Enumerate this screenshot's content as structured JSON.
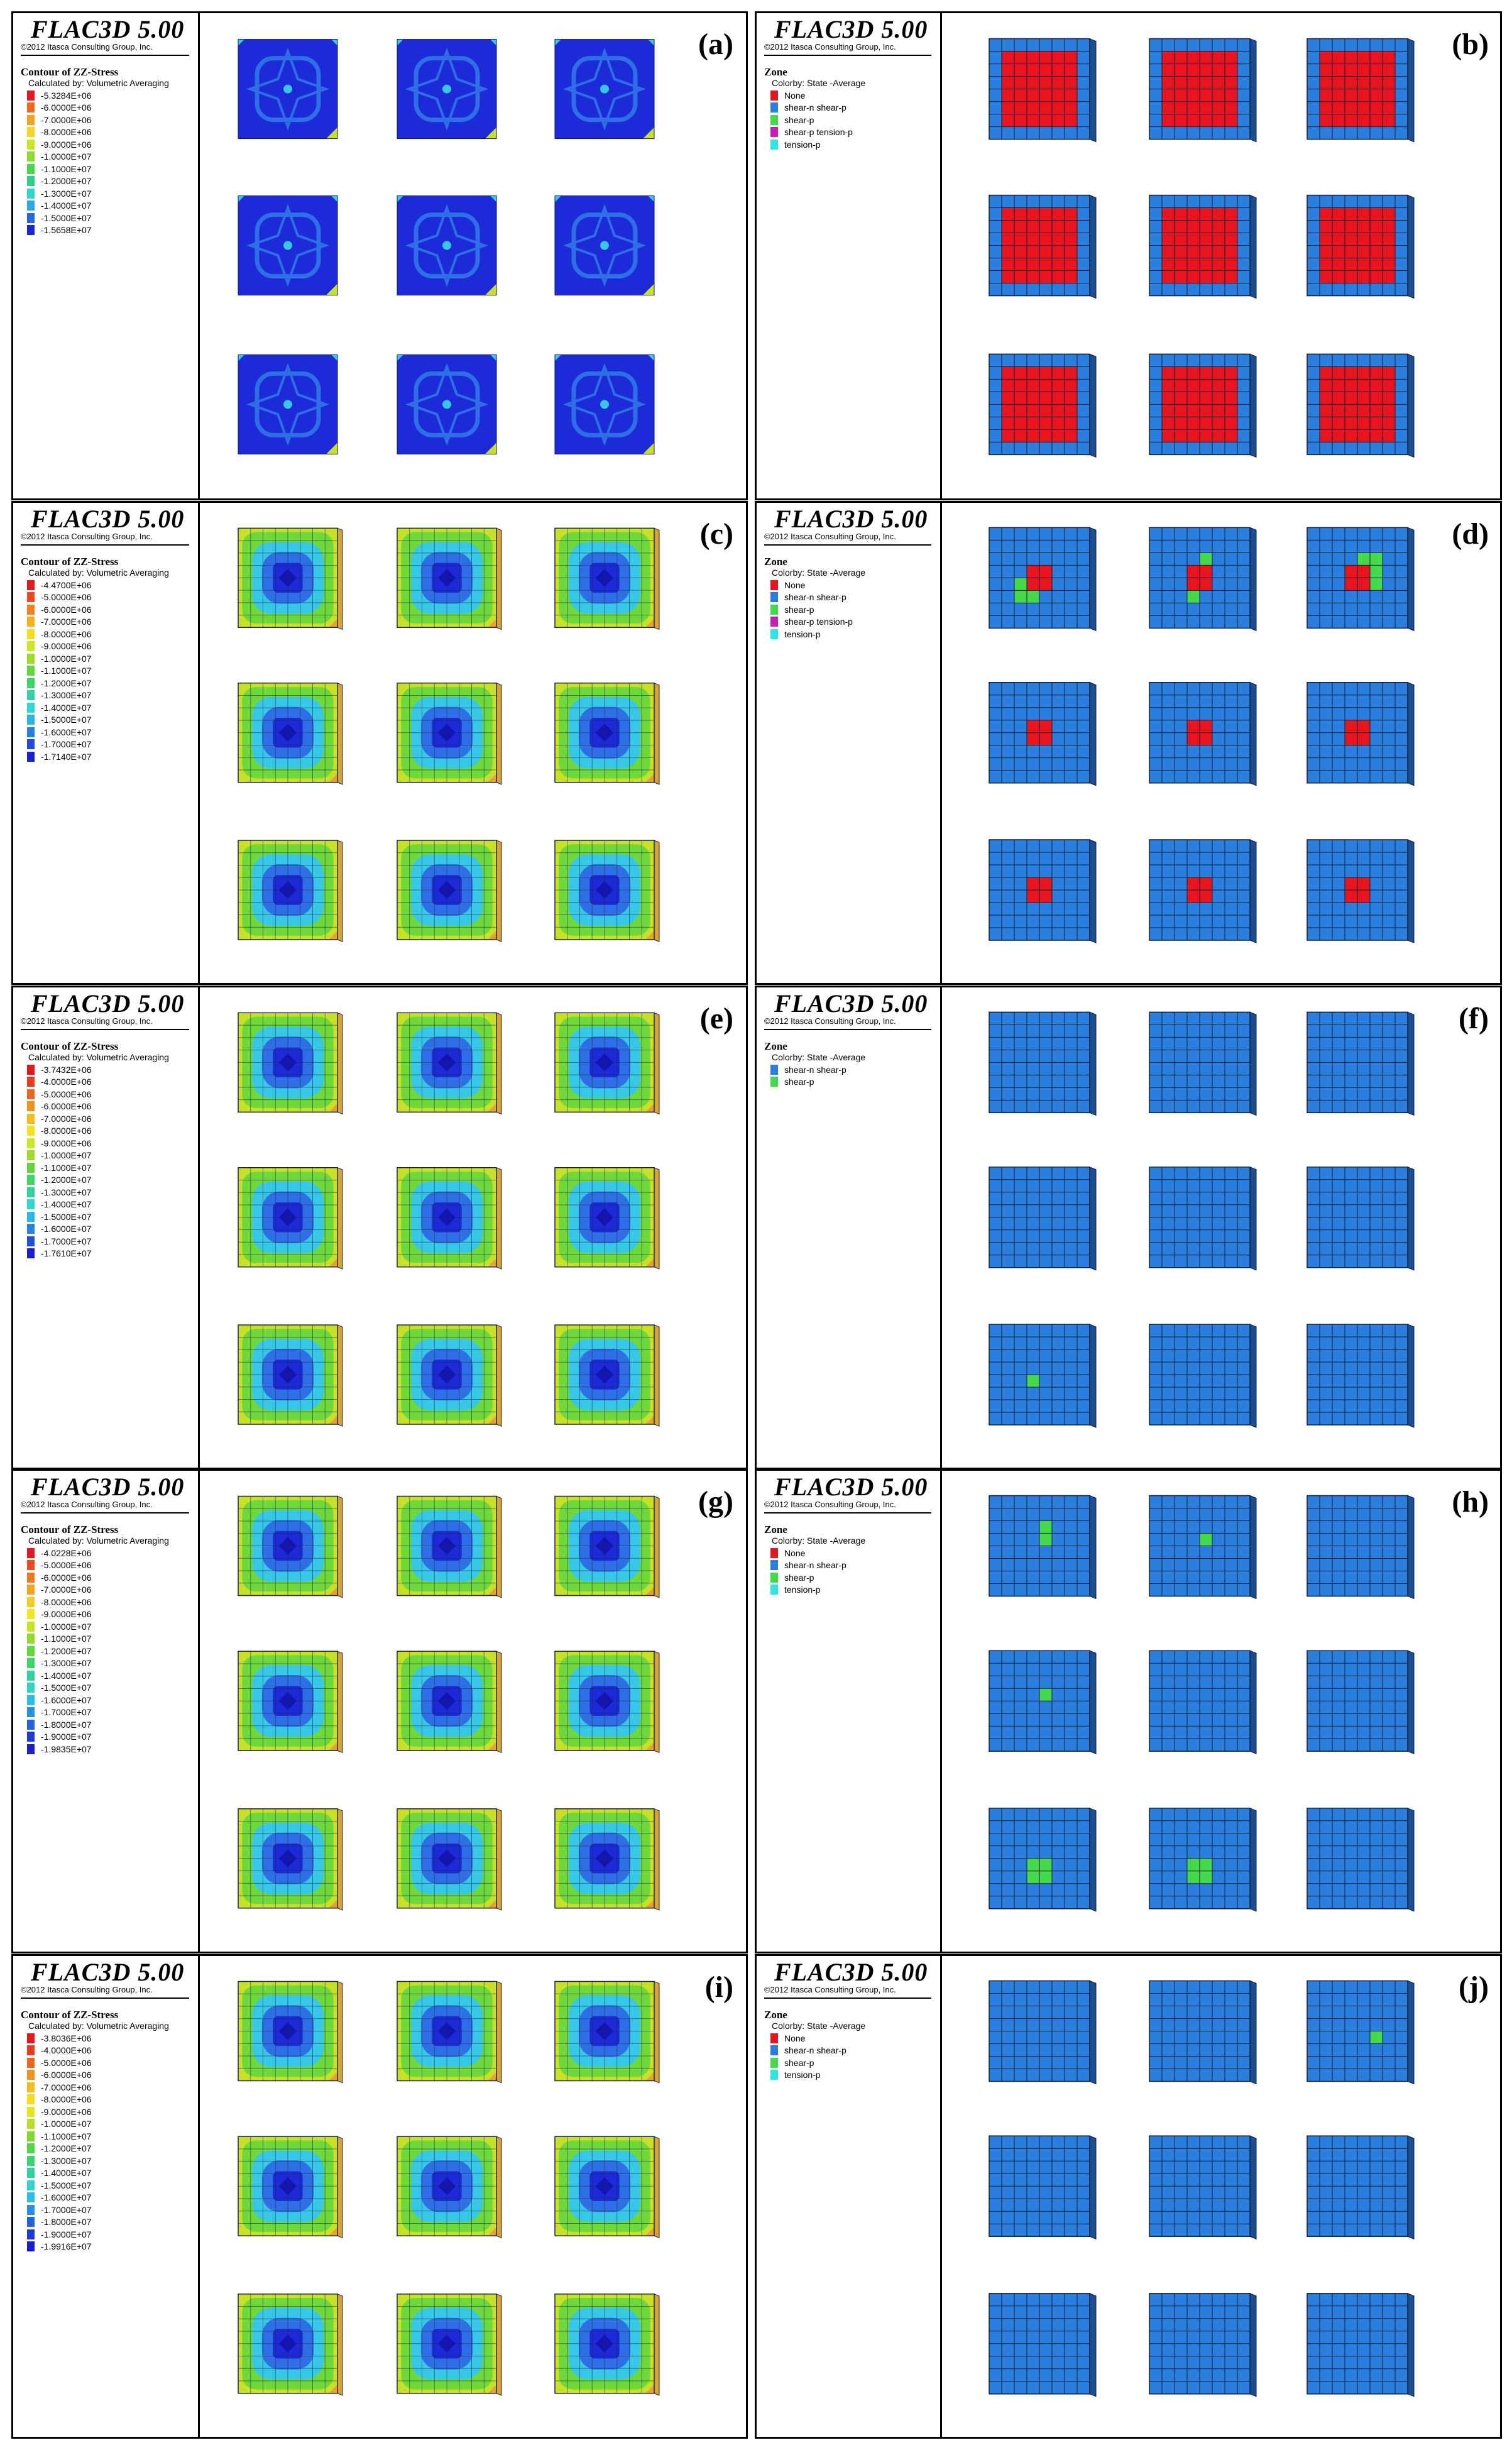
{
  "figure": {
    "panels": [
      {
        "id": "a",
        "label": "(a)",
        "kind": "stress",
        "title": "FLAC3D 5.00",
        "copyright": "©2012 Itasca Consulting Group, Inc.",
        "heading": "Contour of ZZ-Stress",
        "subheading": "Calculated by: Volumetric Averaging",
        "legend": [
          {
            "text": "-5.3284E+06",
            "color": "#e8141e"
          },
          {
            "text": "-6.0000E+06",
            "color": "#f2691e"
          },
          {
            "text": "-7.0000E+06",
            "color": "#f7a11c"
          },
          {
            "text": "-8.0000E+06",
            "color": "#f7d51c"
          },
          {
            "text": "-9.0000E+06",
            "color": "#c8e81e"
          },
          {
            "text": "-1.0000E+07",
            "color": "#8cdc2a"
          },
          {
            "text": "-1.1000E+07",
            "color": "#44d84a"
          },
          {
            "text": "-1.2000E+07",
            "color": "#2ed08c"
          },
          {
            "text": "-1.3000E+07",
            "color": "#2ed8c8"
          },
          {
            "text": "-1.4000E+07",
            "color": "#2aa8ea"
          },
          {
            "text": "-1.5000E+07",
            "color": "#2466e6"
          },
          {
            "text": "-1.5658E+07",
            "color": "#1a24d8"
          }
        ]
      },
      {
        "id": "b",
        "label": "(b)",
        "kind": "state",
        "title": "FLAC3D 5.00",
        "copyright": "©2012 Itasca Consulting Group, Inc.",
        "heading": "Zone",
        "subheading": "Colorby: State  -Average",
        "legend": [
          {
            "text": "None",
            "color": "#e8141e"
          },
          {
            "text": "shear-n shear-p",
            "color": "#2a7ede"
          },
          {
            "text": "shear-p",
            "color": "#44d84a"
          },
          {
            "text": "shear-p tension-p",
            "color": "#c81eb4"
          },
          {
            "text": "tension-p",
            "color": "#2ee6e6"
          }
        ]
      },
      {
        "id": "c",
        "label": "(c)",
        "kind": "stress",
        "title": "FLAC3D 5.00",
        "copyright": "©2012 Itasca Consulting Group, Inc.",
        "heading": "Contour of ZZ-Stress",
        "subheading": "Calculated by: Volumetric Averaging",
        "legend": [
          {
            "text": "-4.4700E+06",
            "color": "#e8141e"
          },
          {
            "text": "-5.0000E+06",
            "color": "#ee4a1e"
          },
          {
            "text": "-6.0000E+06",
            "color": "#f2801e"
          },
          {
            "text": "-7.0000E+06",
            "color": "#f7b01c"
          },
          {
            "text": "-8.0000E+06",
            "color": "#f7dc1c"
          },
          {
            "text": "-9.0000E+06",
            "color": "#cce81e"
          },
          {
            "text": "-1.0000E+07",
            "color": "#9adc26"
          },
          {
            "text": "-1.1000E+07",
            "color": "#5ed83a"
          },
          {
            "text": "-1.2000E+07",
            "color": "#38d66a"
          },
          {
            "text": "-1.3000E+07",
            "color": "#2ed4a4"
          },
          {
            "text": "-1.4000E+07",
            "color": "#2ed8d8"
          },
          {
            "text": "-1.5000E+07",
            "color": "#2ab4ea"
          },
          {
            "text": "-1.6000E+07",
            "color": "#2680e8"
          },
          {
            "text": "-1.7000E+07",
            "color": "#1e4ae0"
          },
          {
            "text": "-1.7140E+07",
            "color": "#1a20d6"
          }
        ]
      },
      {
        "id": "d",
        "label": "(d)",
        "kind": "state",
        "title": "FLAC3D 5.00",
        "copyright": "©2012 Itasca Consulting Group, Inc.",
        "heading": "Zone",
        "subheading": "Colorby: State  -Average",
        "legend": [
          {
            "text": "None",
            "color": "#e8141e"
          },
          {
            "text": "shear-n shear-p",
            "color": "#2a7ede"
          },
          {
            "text": "shear-p",
            "color": "#44d84a"
          },
          {
            "text": "shear-p tension-p",
            "color": "#c81eb4"
          },
          {
            "text": "tension-p",
            "color": "#2ee6e6"
          }
        ]
      },
      {
        "id": "e",
        "label": "(e)",
        "kind": "stress",
        "title": "FLAC3D 5.00",
        "copyright": "©2012 Itasca Consulting Group, Inc.",
        "heading": "Contour of ZZ-Stress",
        "subheading": "Calculated by: Volumetric Averaging",
        "legend": [
          {
            "text": "-3.7432E+06",
            "color": "#e8141e"
          },
          {
            "text": "-4.0000E+06",
            "color": "#ec3a1e"
          },
          {
            "text": "-5.0000E+06",
            "color": "#f0661e"
          },
          {
            "text": "-6.0000E+06",
            "color": "#f4921e"
          },
          {
            "text": "-7.0000E+06",
            "color": "#f7bc1c"
          },
          {
            "text": "-8.0000E+06",
            "color": "#f7e01c"
          },
          {
            "text": "-9.0000E+06",
            "color": "#cce81e"
          },
          {
            "text": "-1.0000E+07",
            "color": "#9adc26"
          },
          {
            "text": "-1.1000E+07",
            "color": "#62d838"
          },
          {
            "text": "-1.2000E+07",
            "color": "#3cd664"
          },
          {
            "text": "-1.3000E+07",
            "color": "#2ed49c"
          },
          {
            "text": "-1.4000E+07",
            "color": "#2ed8d0"
          },
          {
            "text": "-1.5000E+07",
            "color": "#2ab8ea"
          },
          {
            "text": "-1.6000E+07",
            "color": "#2684e8"
          },
          {
            "text": "-1.7000E+07",
            "color": "#1e50e0"
          },
          {
            "text": "-1.7610E+07",
            "color": "#1a20d6"
          }
        ]
      },
      {
        "id": "f",
        "label": "(f)",
        "kind": "state",
        "title": "FLAC3D 5.00",
        "copyright": "©2012 Itasca Consulting Group, Inc.",
        "heading": "Zone",
        "subheading": "Colorby: State  -Average",
        "legend": [
          {
            "text": "shear-n shear-p",
            "color": "#2a7ede"
          },
          {
            "text": "shear-p",
            "color": "#44d84a"
          }
        ]
      },
      {
        "id": "g",
        "label": "(g)",
        "kind": "stress",
        "title": "FLAC3D 5.00",
        "copyright": "©2012 Itasca Consulting Group, Inc.",
        "heading": "Contour of ZZ-Stress",
        "subheading": "Calculated by: Volumetric Averaging",
        "legend": [
          {
            "text": "-4.0228E+06",
            "color": "#e8141e"
          },
          {
            "text": "-5.0000E+06",
            "color": "#ee4a1e"
          },
          {
            "text": "-6.0000E+06",
            "color": "#f2781e"
          },
          {
            "text": "-7.0000E+06",
            "color": "#f6a41e"
          },
          {
            "text": "-8.0000E+06",
            "color": "#f7cc1c"
          },
          {
            "text": "-9.0000E+06",
            "color": "#f2e61c"
          },
          {
            "text": "-1.0000E+07",
            "color": "#c4e820"
          },
          {
            "text": "-1.1000E+07",
            "color": "#92dc28"
          },
          {
            "text": "-1.2000E+07",
            "color": "#5ed83a"
          },
          {
            "text": "-1.3000E+07",
            "color": "#3ad666"
          },
          {
            "text": "-1.4000E+07",
            "color": "#2ed498"
          },
          {
            "text": "-1.5000E+07",
            "color": "#2ed6c6"
          },
          {
            "text": "-1.6000E+07",
            "color": "#2abeea"
          },
          {
            "text": "-1.7000E+07",
            "color": "#2690e8"
          },
          {
            "text": "-1.8000E+07",
            "color": "#2262e4"
          },
          {
            "text": "-1.9000E+07",
            "color": "#1e3ade"
          },
          {
            "text": "-1.9835E+07",
            "color": "#1a1cd4"
          }
        ]
      },
      {
        "id": "h",
        "label": "(h)",
        "kind": "state",
        "title": "FLAC3D 5.00",
        "copyright": "©2012 Itasca Consulting Group, Inc.",
        "heading": "Zone",
        "subheading": "Colorby: State  -Average",
        "legend": [
          {
            "text": "None",
            "color": "#e8141e"
          },
          {
            "text": "shear-n shear-p",
            "color": "#2a7ede"
          },
          {
            "text": "shear-p",
            "color": "#44d84a"
          },
          {
            "text": "tension-p",
            "color": "#2ee6e6"
          }
        ]
      },
      {
        "id": "i",
        "label": "(i)",
        "kind": "stress",
        "title": "FLAC3D 5.00",
        "copyright": "©2012 Itasca Consulting Group, Inc.",
        "heading": "Contour of ZZ-Stress",
        "subheading": "Calculated by: Volumetric Averaging",
        "legend": [
          {
            "text": "-3.8036E+06",
            "color": "#e8141e"
          },
          {
            "text": "-4.0000E+06",
            "color": "#ec3a1e"
          },
          {
            "text": "-5.0000E+06",
            "color": "#f0661e"
          },
          {
            "text": "-6.0000E+06",
            "color": "#f4921e"
          },
          {
            "text": "-7.0000E+06",
            "color": "#f7bc1c"
          },
          {
            "text": "-8.0000E+06",
            "color": "#f7dc1c"
          },
          {
            "text": "-9.0000E+06",
            "color": "#e2e81e"
          },
          {
            "text": "-1.0000E+07",
            "color": "#b2e222"
          },
          {
            "text": "-1.1000E+07",
            "color": "#80da2c"
          },
          {
            "text": "-1.2000E+07",
            "color": "#52d842"
          },
          {
            "text": "-1.3000E+07",
            "color": "#36d670"
          },
          {
            "text": "-1.4000E+07",
            "color": "#2ed4a0"
          },
          {
            "text": "-1.5000E+07",
            "color": "#2ed6cc"
          },
          {
            "text": "-1.6000E+07",
            "color": "#2abeea"
          },
          {
            "text": "-1.7000E+07",
            "color": "#2690e8"
          },
          {
            "text": "-1.8000E+07",
            "color": "#2262e4"
          },
          {
            "text": "-1.9000E+07",
            "color": "#1e3ade"
          },
          {
            "text": "-1.9916E+07",
            "color": "#1a1cd4"
          }
        ]
      },
      {
        "id": "j",
        "label": "(j)",
        "kind": "state",
        "title": "FLAC3D 5.00",
        "copyright": "©2012 Itasca Consulting Group, Inc.",
        "heading": "Zone",
        "subheading": "Colorby: State  -Average",
        "legend": [
          {
            "text": "None",
            "color": "#e8141e"
          },
          {
            "text": "shear-n shear-p",
            "color": "#2a7ede"
          },
          {
            "text": "shear-p",
            "color": "#44d84a"
          },
          {
            "text": "tension-p",
            "color": "#2ee6e6"
          }
        ]
      }
    ],
    "zone_states": {
      "a": {
        "core": "#e8141e",
        "extra": []
      },
      "b": {
        "core": "red-large",
        "extra": []
      },
      "d": {
        "core": "red-small",
        "extra": []
      },
      "f": {
        "core": "none",
        "extra": []
      },
      "h": {
        "core": "none",
        "extra": []
      },
      "j": {
        "core": "none",
        "extra": []
      }
    },
    "colors": {
      "stress_deep": "#1c2ad8",
      "stress_mid": "#2f6fe6",
      "stress_cyan": "#36c8e6",
      "stress_green": "#6fd83a",
      "stress_yellow": "#c8e026",
      "stress_edge": "#d9a034",
      "state_blue": "#2a7ede",
      "state_red": "#e8141e",
      "state_green": "#44d84a",
      "grid_line": "#1a2a4a"
    }
  }
}
